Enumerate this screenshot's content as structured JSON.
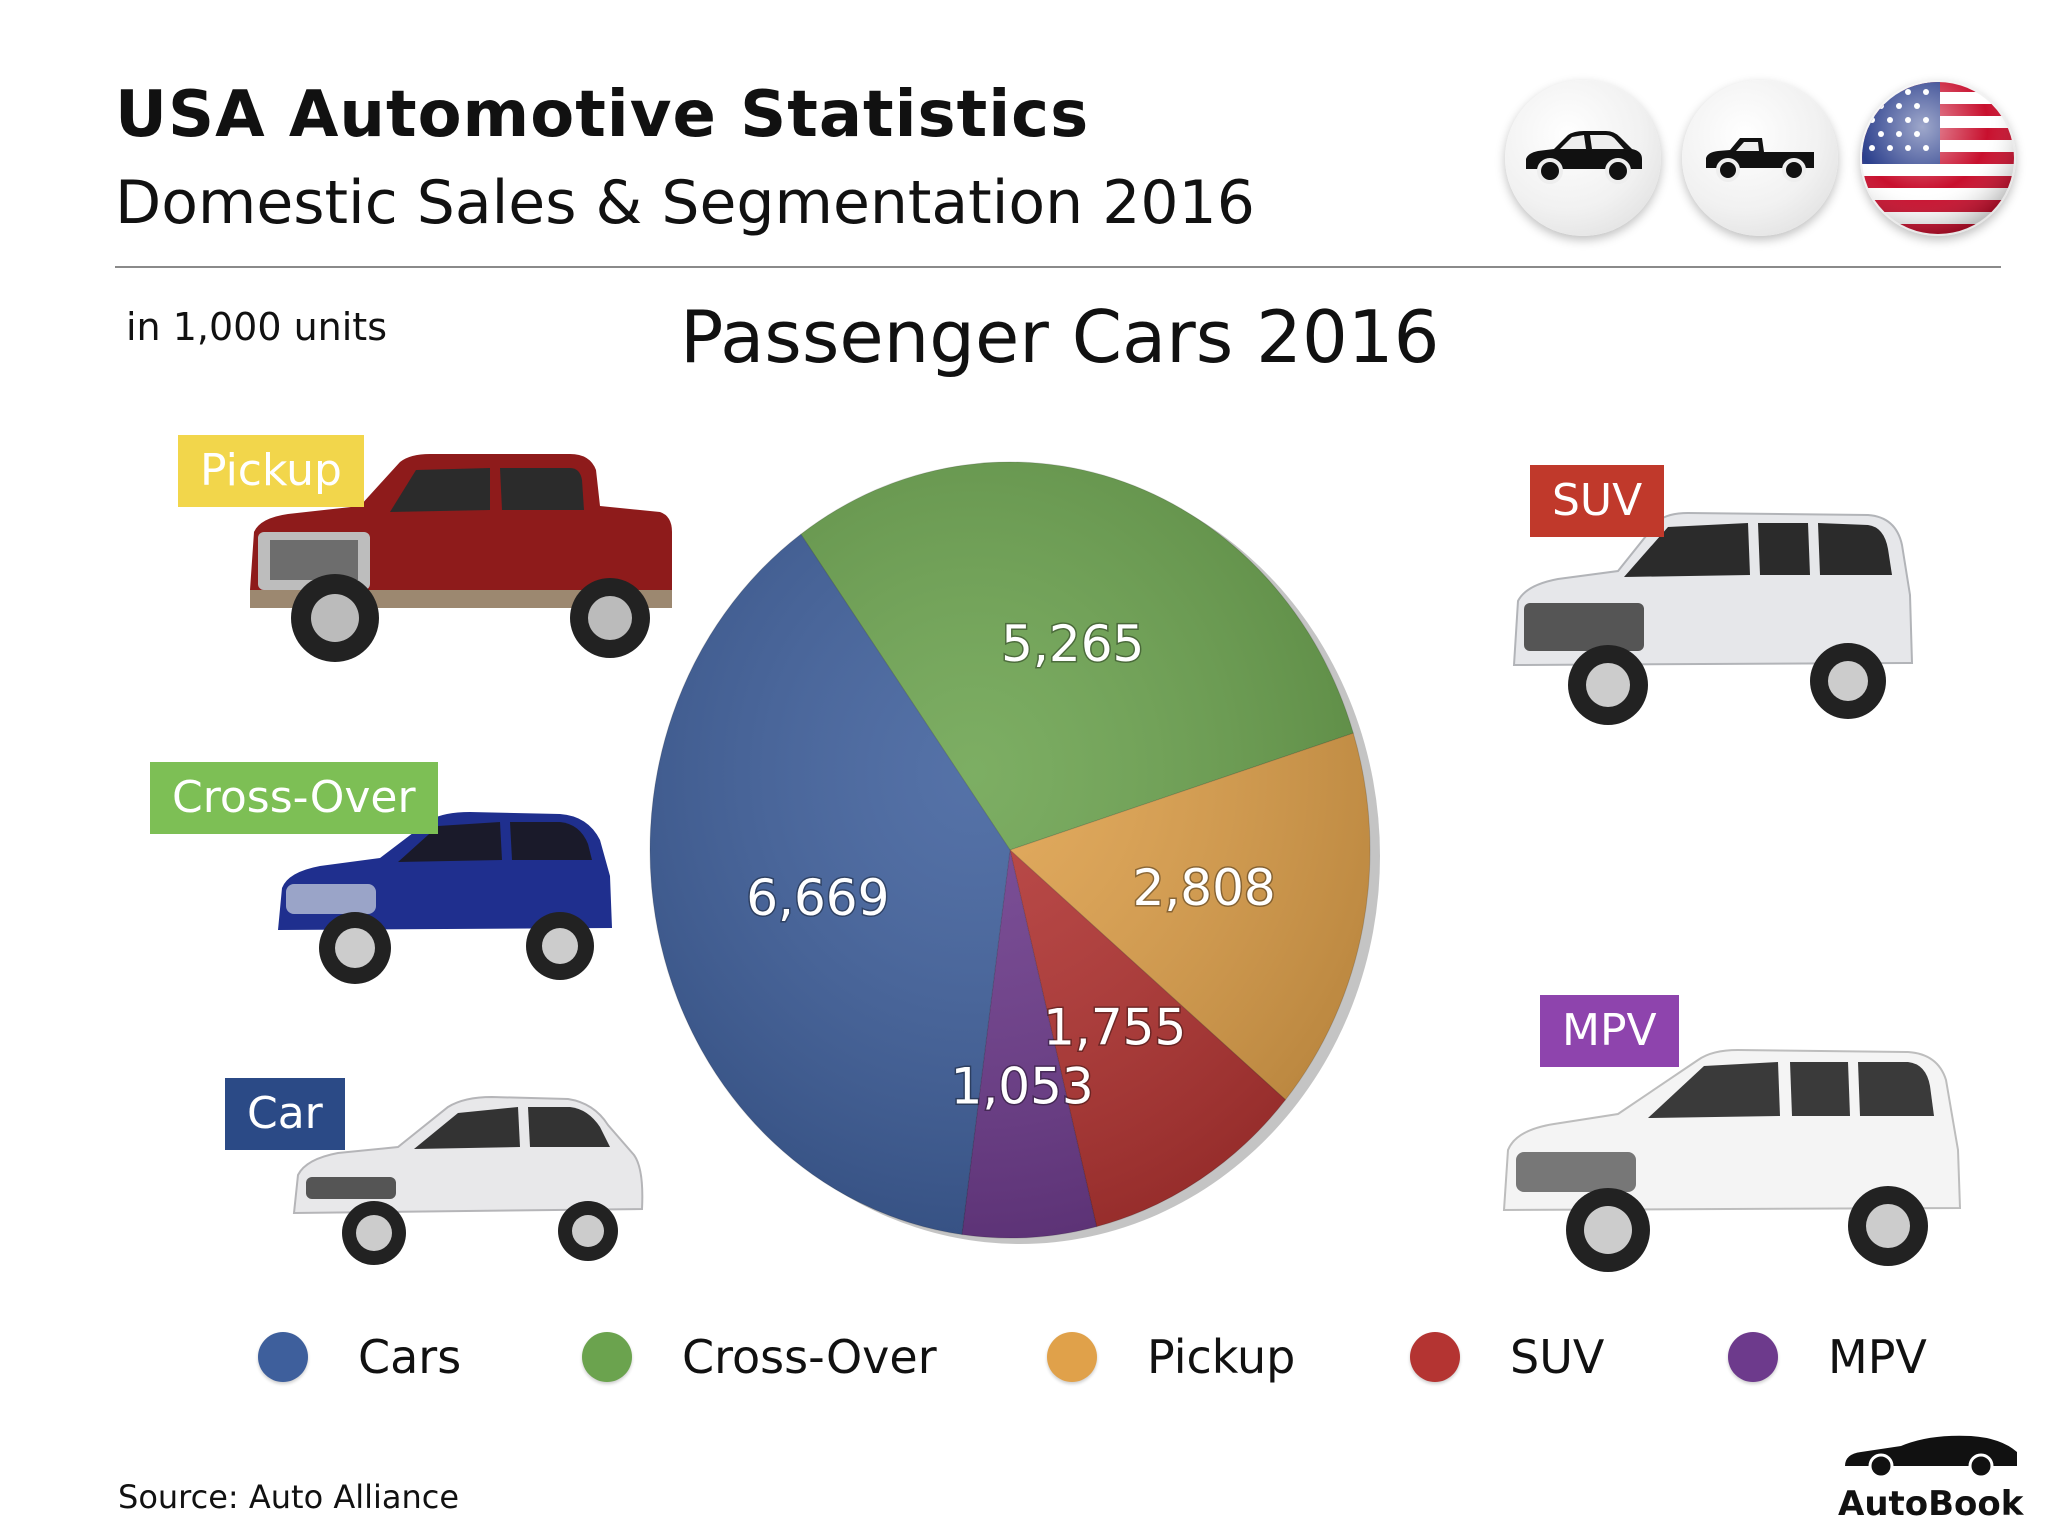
{
  "header": {
    "title": "USA Automotive Statistics",
    "subtitle": "Domestic Sales & Segmentation 2016"
  },
  "units_note": "in 1,000 units",
  "icons": [
    "sedan-icon",
    "pickup-truck-icon",
    "usa-flag-icon"
  ],
  "tags": {
    "pickup": "Pickup",
    "crossover": "Cross-Over",
    "car": "Car",
    "suv": "SUV",
    "mpv": "MPV"
  },
  "colors": {
    "cars": "#3E5F9C",
    "crossover": "#6BA34E",
    "pickup": "#E0A14A",
    "suv": "#B43432",
    "mpv": "#6D3A8C",
    "tag_pickup": "#F2D64B",
    "tag_crossover": "#7DBF55",
    "tag_car": "#2B4A86",
    "tag_suv": "#C0392B",
    "tag_mpv": "#8E44AD"
  },
  "chart_data": {
    "type": "pie",
    "title": "Passenger Cars 2016",
    "unit": "in 1,000 units",
    "slices": [
      {
        "label": "Cars",
        "value": 6669,
        "display": "6,669",
        "color": "#3E5F9C"
      },
      {
        "label": "Cross-Over",
        "value": 5265,
        "display": "5,265",
        "color": "#6BA34E"
      },
      {
        "label": "Pickup",
        "value": 2808,
        "display": "2,808",
        "color": "#E0A14A"
      },
      {
        "label": "SUV",
        "value": 1755,
        "display": "1,755",
        "color": "#B43432"
      },
      {
        "label": "MPV",
        "value": 1053,
        "display": "1,053",
        "color": "#6D3A8C"
      }
    ],
    "legend": [
      "Cars",
      "Cross-Over",
      "Pickup",
      "SUV",
      "MPV"
    ]
  },
  "footer": {
    "source": "Source:  Auto Alliance",
    "brand": "AutoBook"
  }
}
